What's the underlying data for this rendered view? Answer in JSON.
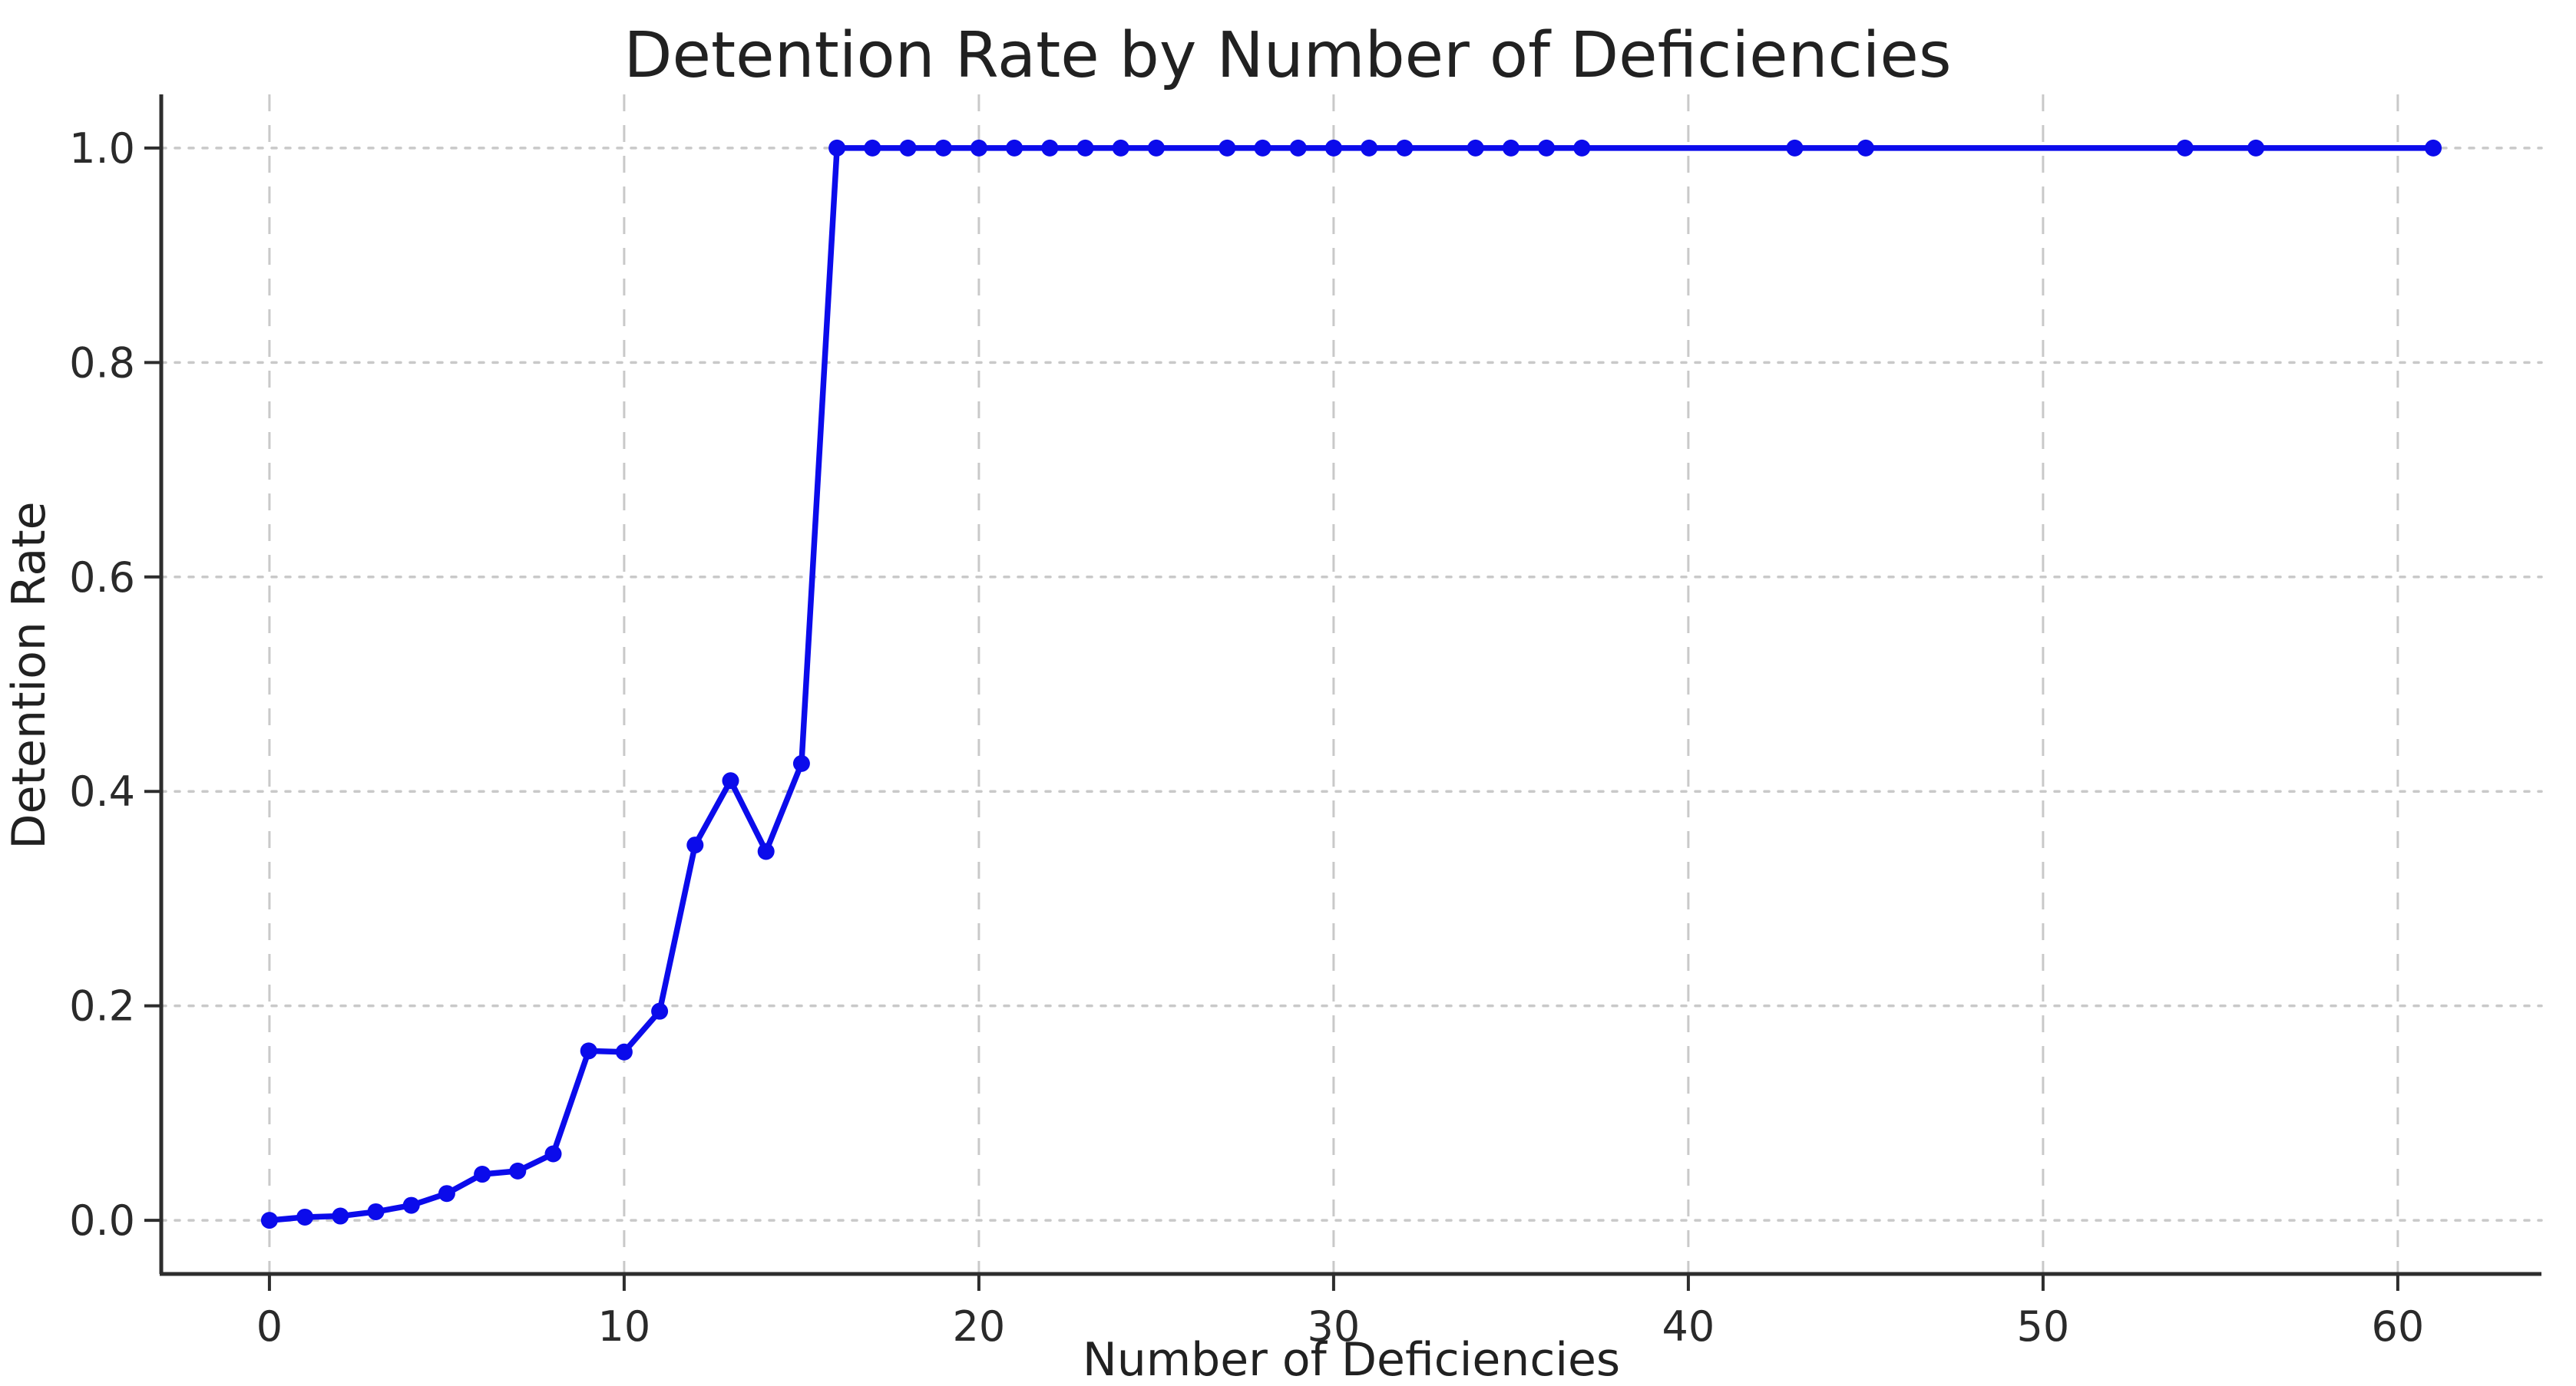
{
  "figure": {
    "background": "#ffffff"
  },
  "chart_data": {
    "type": "line",
    "title": "Detention Rate by Number of Deficiencies",
    "xlabel": "Number of Deficiencies",
    "ylabel": "Detention Rate",
    "x": [
      0,
      1,
      2,
      3,
      4,
      5,
      6,
      7,
      8,
      9,
      10,
      11,
      12,
      13,
      14,
      15,
      16,
      17,
      18,
      19,
      20,
      21,
      22,
      23,
      24,
      25,
      27,
      28,
      29,
      30,
      31,
      32,
      34,
      35,
      36,
      37,
      43,
      45,
      54,
      56,
      61
    ],
    "y": [
      0.0,
      0.003,
      0.004,
      0.008,
      0.014,
      0.025,
      0.043,
      0.046,
      0.062,
      0.158,
      0.157,
      0.195,
      0.35,
      0.41,
      0.344,
      0.426,
      1.0,
      1.0,
      1.0,
      1.0,
      1.0,
      1.0,
      1.0,
      1.0,
      1.0,
      1.0,
      1.0,
      1.0,
      1.0,
      1.0,
      1.0,
      1.0,
      1.0,
      1.0,
      1.0,
      1.0,
      1.0,
      1.0,
      1.0,
      1.0,
      1.0
    ],
    "xlim": [
      -3.05,
      64.05
    ],
    "ylim": [
      -0.05,
      1.05
    ],
    "xticks": {
      "values": [
        0,
        10,
        20,
        30,
        40,
        50,
        60
      ],
      "labels": [
        "0",
        "10",
        "20",
        "30",
        "40",
        "50",
        "60"
      ]
    },
    "yticks": {
      "values": [
        0.0,
        0.2,
        0.4,
        0.6,
        0.8,
        1.0
      ],
      "labels": [
        "0.0",
        "0.2",
        "0.4",
        "0.6",
        "0.8",
        "1.0"
      ]
    },
    "grid": true,
    "legend": false,
    "line_color": "#0b0beb",
    "marker": "circle",
    "grid_color": "#c9c9c9",
    "axis_color": "#2d2d2d",
    "text_color": "#212121"
  }
}
